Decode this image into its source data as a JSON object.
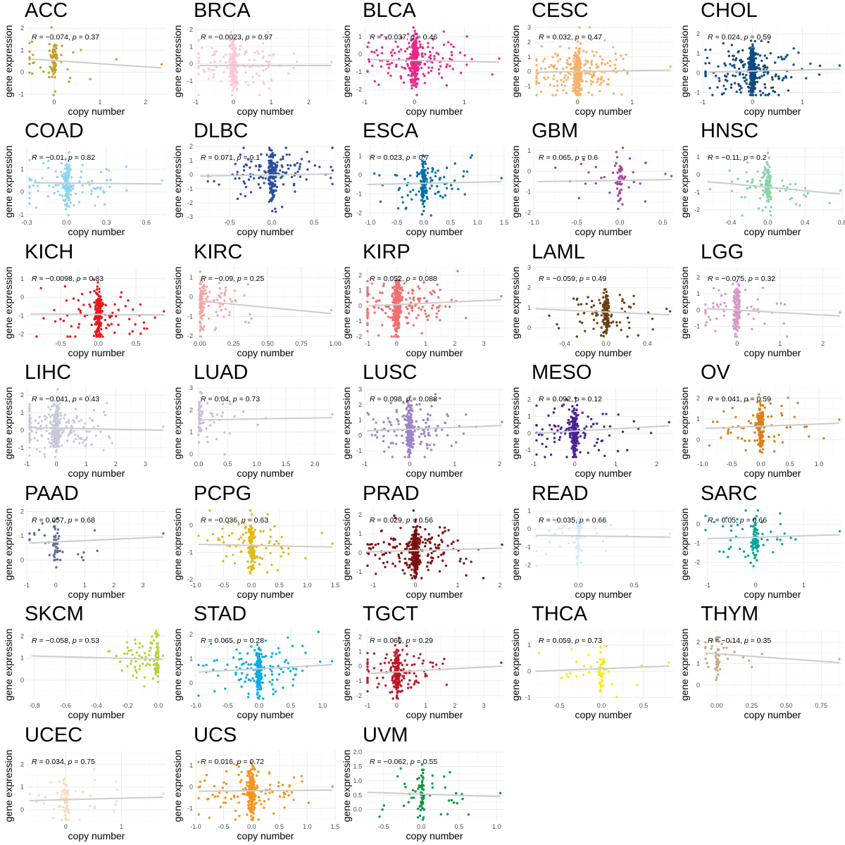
{
  "chart_data": {
    "type": "scatter",
    "layout": "facets 5 columns x 7 rows",
    "xlabel": "copy number",
    "ylabel": "gene expression",
    "grid": true,
    "trend_line_color": "#cccccc",
    "panels": [
      {
        "title": "ACC",
        "color": "#c5a12b",
        "R": "−0.074",
        "p": "0.37",
        "n": 90,
        "xlim": [
          -0.6,
          2.45
        ],
        "xticks": [
          "0",
          "1",
          "2"
        ],
        "ylim": [
          -1.1,
          2.1
        ],
        "yticks": [
          "-1",
          "0",
          "1",
          "2"
        ],
        "line": [
          [
            -0.5,
            0.6
          ],
          [
            2.35,
            0.2
          ]
        ]
      },
      {
        "title": "BRCA",
        "color": "#f9c9d5",
        "R": "−0.0023",
        "p": "0.97",
        "n": 280,
        "xlim": [
          -1,
          2.7
        ],
        "xticks": [
          "-1",
          "0",
          "1",
          "2"
        ],
        "ylim": [
          -1.9,
          2.2
        ],
        "yticks": [
          "-1",
          "0",
          "1",
          "2"
        ],
        "line": [
          [
            -0.9,
            -0.1
          ],
          [
            2.6,
            -0.1
          ]
        ]
      },
      {
        "title": "BLCA",
        "color": "#e7298a",
        "R": "−0.037",
        "p": "0.46",
        "n": 380,
        "xlim": [
          -1,
          1.8
        ],
        "xticks": [
          "-1",
          "0",
          "1"
        ],
        "ylim": [
          -2.4,
          1.6
        ],
        "yticks": [
          "-2",
          "-1",
          "0",
          "1"
        ],
        "line": [
          [
            -0.9,
            -0.3
          ],
          [
            1.7,
            -0.45
          ]
        ]
      },
      {
        "title": "CESC",
        "color": "#f6b26b",
        "R": "0.032",
        "p": "0.47",
        "n": 420,
        "xlim": [
          -0.8,
          1.75
        ],
        "xticks": [
          "0",
          "1"
        ],
        "ylim": [
          -1.7,
          3.1
        ],
        "yticks": [
          "-1",
          "0",
          "1",
          "2",
          "3"
        ],
        "line": [
          [
            -0.75,
            -0.05
          ],
          [
            1.7,
            0.1
          ]
        ]
      },
      {
        "title": "CHOL",
        "color": "#0f4c81",
        "R": "0.024",
        "p": "0.59",
        "n": 420,
        "xlim": [
          -1,
          1.8
        ],
        "xticks": [
          "-1",
          "0",
          "1"
        ],
        "ylim": [
          -1.2,
          2.4
        ],
        "yticks": [
          "-1",
          "0",
          "1",
          "2"
        ],
        "line": [
          [
            -0.9,
            0.05
          ],
          [
            1.75,
            0.2
          ]
        ]
      },
      {
        "title": "COAD",
        "color": "#8fd3f4",
        "R": "−0.01",
        "p": "0.82",
        "n": 200,
        "xlim": [
          -0.3,
          0.75
        ],
        "xticks": [
          "-0.3",
          "0.0",
          "0.3",
          "0.6"
        ],
        "ylim": [
          -1.1,
          2
        ],
        "yticks": [
          "-1",
          "0",
          "1"
        ],
        "line": [
          [
            -0.25,
            0.4
          ],
          [
            0.72,
            0.35
          ]
        ]
      },
      {
        "title": "DLBC",
        "color": "#2c4f9e",
        "R": "0.071",
        "p": "0.1",
        "n": 260,
        "xlim": [
          -0.9,
          0.75
        ],
        "xticks": [
          "-0.5",
          "0.0",
          "0.5"
        ],
        "ylim": [
          -3,
          2
        ],
        "yticks": [
          "-3",
          "-2",
          "-1",
          "0",
          "1",
          "2"
        ],
        "line": [
          [
            -0.85,
            -0.1
          ],
          [
            0.72,
            0.05
          ]
        ]
      },
      {
        "title": "ESCA",
        "color": "#0570a8",
        "R": "0.023",
        "p": "0.7",
        "n": 180,
        "xlim": [
          -1.1,
          1.5
        ],
        "xticks": [
          "-1.0",
          "-0.5",
          "0.0",
          "0.5",
          "1.0",
          "1.5"
        ],
        "ylim": [
          -2.2,
          1.5
        ],
        "yticks": [
          "-2",
          "-1",
          "0",
          "1"
        ],
        "line": [
          [
            -1.05,
            -0.5
          ],
          [
            1.45,
            -0.35
          ]
        ]
      },
      {
        "title": "GBM",
        "color": "#a9449a",
        "R": "0.065",
        "p": "0.6",
        "n": 70,
        "xlim": [
          -1,
          0.62
        ],
        "xticks": [
          "-1.0",
          "-0.5",
          "0.0",
          "0.5"
        ],
        "ylim": [
          -2.2,
          1.2
        ],
        "yticks": [
          "-2",
          "-1",
          "0",
          "1"
        ],
        "line": [
          [
            -0.95,
            -0.5
          ],
          [
            0.6,
            -0.4
          ]
        ]
      },
      {
        "title": "HNSC",
        "color": "#88d4a8",
        "R": "−0.11",
        "p": "0.2",
        "n": 140,
        "xlim": [
          -0.7,
          0.8
        ],
        "xticks": [
          "-0.4",
          "0.0",
          "0.4",
          "0.8"
        ],
        "ylim": [
          -2.4,
          1.6
        ],
        "yticks": [
          "-2",
          "-1",
          "0",
          "1"
        ],
        "line": [
          [
            -0.65,
            -0.4
          ],
          [
            0.78,
            -1.1
          ]
        ]
      },
      {
        "title": "KICH",
        "color": "#e31a1c",
        "R": "−0.0098",
        "p": "0.83",
        "n": 220,
        "xlim": [
          -0.95,
          0.9
        ],
        "xticks": [
          "-0.5",
          "0.0",
          "0.5"
        ],
        "ylim": [
          -2.2,
          1.6
        ],
        "yticks": [
          "-2",
          "-1",
          "0",
          "1"
        ],
        "line": [
          [
            -0.9,
            -0.9
          ],
          [
            0.87,
            -0.95
          ]
        ]
      },
      {
        "title": "KIRC",
        "color": "#f4a6a6",
        "R": "−0.09",
        "p": "0.25",
        "n": 160,
        "xlim": [
          -0.03,
          1.0
        ],
        "xticks": [
          "0.00",
          "0.25",
          "0.50",
          "0.75",
          "1.00"
        ],
        "ylim": [
          -2.1,
          1.5
        ],
        "yticks": [
          "-2",
          "-1",
          "0",
          "1"
        ],
        "line": [
          [
            -0.01,
            -0.2
          ],
          [
            0.97,
            -0.85
          ]
        ]
      },
      {
        "title": "KIRP",
        "color": "#f07070",
        "R": "0.052",
        "p": "0.088",
        "n": 450,
        "xlim": [
          -1.1,
          3.7
        ],
        "xticks": [
          "-1",
          "0",
          "1",
          "2",
          "3"
        ],
        "ylim": [
          -2.1,
          2.5
        ],
        "yticks": [
          "-2",
          "-1",
          "0",
          "1",
          "2"
        ],
        "line": [
          [
            -0.95,
            0.0
          ],
          [
            3.6,
            0.4
          ]
        ]
      },
      {
        "title": "LAML",
        "color": "#6b3e12",
        "R": "−0.059",
        "p": "0.49",
        "n": 170,
        "xlim": [
          -0.7,
          0.65
        ],
        "xticks": [
          "-0.4",
          "0.0",
          "0.4"
        ],
        "ylim": [
          -0.5,
          3
        ],
        "yticks": [
          "0",
          "1",
          "2",
          "3"
        ],
        "line": [
          [
            -0.68,
            0.95
          ],
          [
            0.62,
            0.65
          ]
        ]
      },
      {
        "title": "LGG",
        "color": "#d39ac6",
        "R": "−0.075",
        "p": "0.32",
        "n": 170,
        "xlim": [
          -0.8,
          2.45
        ],
        "xticks": [
          "0",
          "1",
          "2"
        ],
        "ylim": [
          -1.7,
          2.6
        ],
        "yticks": [
          "-1",
          "0",
          "1",
          "2"
        ],
        "line": [
          [
            -0.7,
            0.1
          ],
          [
            2.4,
            -0.35
          ]
        ]
      },
      {
        "title": "LIHC",
        "color": "#c8c8dc",
        "R": "−0.041",
        "p": "0.43",
        "n": 360,
        "xlim": [
          -1,
          3.7
        ],
        "xticks": [
          "-1",
          "0",
          "1",
          "2",
          "3"
        ],
        "ylim": [
          -1.6,
          2.4
        ],
        "yticks": [
          "-1",
          "0",
          "1",
          "2"
        ],
        "line": [
          [
            -0.9,
            0.15
          ],
          [
            3.6,
            0.0
          ]
        ]
      },
      {
        "title": "LUAD",
        "color": "#cdb9e0",
        "R": "0.04",
        "p": "0.73",
        "n": 70,
        "xlim": [
          -0.05,
          2.35
        ],
        "xticks": [
          "0.0",
          "0.5",
          "1.0",
          "1.5",
          "2.0"
        ],
        "ylim": [
          -0.2,
          3
        ],
        "yticks": [
          "0",
          "1",
          "2",
          "3"
        ],
        "line": [
          [
            0.0,
            1.55
          ],
          [
            2.3,
            1.65
          ]
        ]
      },
      {
        "title": "LUSC",
        "color": "#9e86c4",
        "R": "0.098",
        "p": "0.088",
        "n": 300,
        "xlim": [
          -1,
          2.1
        ],
        "xticks": [
          "-1",
          "0",
          "1",
          "2"
        ],
        "ylim": [
          -1.5,
          3.1
        ],
        "yticks": [
          "-1",
          "0",
          "1",
          "2",
          "3"
        ],
        "line": [
          [
            -0.95,
            0.3
          ],
          [
            2.05,
            0.65
          ]
        ]
      },
      {
        "title": "MESO",
        "color": "#4b2391",
        "R": "0.092",
        "p": "0.12",
        "n": 260,
        "xlim": [
          -1,
          2.4
        ],
        "xticks": [
          "-1",
          "0",
          "1",
          "2"
        ],
        "ylim": [
          -1.5,
          2.7
        ],
        "yticks": [
          "-1",
          "0",
          "1",
          "2"
        ],
        "line": [
          [
            -0.95,
            0.0
          ],
          [
            2.3,
            0.45
          ]
        ]
      },
      {
        "title": "OV",
        "color": "#d9801c",
        "R": "0.041",
        "p": "0.59",
        "n": 170,
        "xlim": [
          -1,
          1.4
        ],
        "xticks": [
          "-1.0",
          "-0.5",
          "0.0",
          "0.5",
          "1.0"
        ],
        "ylim": [
          -0.9,
          2.5
        ],
        "yticks": [
          "0",
          "1",
          "2"
        ],
        "line": [
          [
            -0.95,
            0.55
          ],
          [
            1.35,
            0.8
          ]
        ]
      },
      {
        "title": "PAAD",
        "color": "#5e6e9e",
        "R": "0.057",
        "p": "0.68",
        "n": 60,
        "xlim": [
          -1,
          3.8
        ],
        "xticks": [
          "-1",
          "0",
          "1",
          "2",
          "3"
        ],
        "ylim": [
          -0.8,
          2.1
        ],
        "yticks": [
          "0",
          "1",
          "2"
        ],
        "line": [
          [
            -0.9,
            0.7
          ],
          [
            3.7,
            0.95
          ]
        ]
      },
      {
        "title": "PCPG",
        "color": "#e2b81a",
        "R": "−0.036",
        "p": "0.63",
        "n": 180,
        "xlim": [
          -1,
          1.5
        ],
        "xticks": [
          "-1.0",
          "-0.5",
          "0.0",
          "0.5",
          "1.0",
          "1.5"
        ],
        "ylim": [
          -2,
          0.6
        ],
        "yticks": [
          "-2",
          "-1",
          "0"
        ],
        "line": [
          [
            -0.95,
            -0.7
          ],
          [
            1.45,
            -0.8
          ]
        ]
      },
      {
        "title": "PRAD",
        "color": "#7b1113",
        "R": "0.029",
        "p": "0.56",
        "n": 420,
        "xlim": [
          -1.2,
          2.1
        ],
        "xticks": [
          "-1",
          "0",
          "1",
          "2"
        ],
        "ylim": [
          -1.4,
          2.3
        ],
        "yticks": [
          "-1",
          "0",
          "1",
          "2"
        ],
        "line": [
          [
            -1.15,
            0.05
          ],
          [
            2.05,
            0.25
          ]
        ]
      },
      {
        "title": "READ",
        "color": "#d4ecf9",
        "R": "−0.035",
        "p": "0.66",
        "n": 90,
        "xlim": [
          -0.4,
          0.85
        ],
        "xticks": [
          "0.0",
          "0.5"
        ],
        "ylim": [
          -2.8,
          1.1
        ],
        "yticks": [
          "-2",
          "-1",
          "0",
          "1"
        ],
        "line": [
          [
            -0.38,
            -0.35
          ],
          [
            0.82,
            -0.45
          ]
        ]
      },
      {
        "title": "SARC",
        "color": "#0aa59a",
        "R": "0.05",
        "p": "0.66",
        "n": 110,
        "xlim": [
          -1.1,
          1.8
        ],
        "xticks": [
          "-1",
          "0",
          "1"
        ],
        "ylim": [
          -2.9,
          0.8
        ],
        "yticks": [
          "-2",
          "-1",
          "0"
        ],
        "line": [
          [
            -1.0,
            -0.75
          ],
          [
            1.75,
            -0.55
          ]
        ]
      },
      {
        "title": "SKCM",
        "color": "#b5d334",
        "R": "−0.058",
        "p": "0.53",
        "n": 110,
        "xlim": [
          -0.85,
          0.05
        ],
        "xticks": [
          "-0.8",
          "-0.6",
          "-0.4",
          "-0.2",
          "0.0"
        ],
        "ylim": [
          -0.9,
          2.3
        ],
        "yticks": [
          "0",
          "1",
          "2"
        ],
        "line": [
          [
            -0.82,
            1.1
          ],
          [
            0.03,
            0.95
          ]
        ]
      },
      {
        "title": "STAD",
        "color": "#0aabe6",
        "R": "0.065",
        "p": "0.28",
        "n": 260,
        "xlim": [
          -1,
          1.2
        ],
        "xticks": [
          "-1.0",
          "-0.5",
          "0.0",
          "0.5",
          "1.0"
        ],
        "ylim": [
          -0.7,
          2.2
        ],
        "yticks": [
          "0",
          "1",
          "2"
        ],
        "line": [
          [
            -0.95,
            0.45
          ],
          [
            1.15,
            0.75
          ]
        ]
      },
      {
        "title": "TGCT",
        "color": "#c0172c",
        "R": "0.066",
        "p": "0.29",
        "n": 260,
        "xlim": [
          -1.1,
          3.7
        ],
        "xticks": [
          "-1",
          "0",
          "1",
          "2",
          "3"
        ],
        "ylim": [
          -2.3,
          2.5
        ],
        "yticks": [
          "-2",
          "-1",
          "0",
          "1",
          "2"
        ],
        "line": [
          [
            -1.0,
            -0.5
          ],
          [
            3.6,
            0.0
          ]
        ]
      },
      {
        "title": "THCA",
        "color": "#f5ea14",
        "R": "0.059",
        "p": "0.73",
        "n": 60,
        "xlim": [
          -0.8,
          0.85
        ],
        "xticks": [
          "-0.5",
          "0.0",
          "0.5"
        ],
        "ylim": [
          -1.1,
          1.6
        ],
        "yticks": [
          "-1",
          "0",
          "1"
        ],
        "line": [
          [
            -0.78,
            0.0
          ],
          [
            0.8,
            0.2
          ]
        ]
      },
      {
        "title": "THYM",
        "color": "#c9a886",
        "R": "−0.14",
        "p": "0.35",
        "n": 60,
        "xlim": [
          -0.1,
          0.9
        ],
        "xticks": [
          "0.00",
          "0.25",
          "0.50",
          "0.75"
        ],
        "ylim": [
          -0.7,
          2.6
        ],
        "yticks": [
          "0",
          "1",
          "2"
        ],
        "line": [
          [
            -0.08,
            1.5
          ],
          [
            0.88,
            1.05
          ]
        ]
      },
      {
        "title": "UCEC",
        "color": "#f9dcbe",
        "R": "0.034",
        "p": "0.75",
        "n": 90,
        "xlim": [
          -0.7,
          1.8
        ],
        "xticks": [
          "0",
          "1"
        ],
        "ylim": [
          -0.5,
          2.6
        ],
        "yticks": [
          "0",
          "1",
          "2"
        ],
        "line": [
          [
            -0.65,
            0.4
          ],
          [
            1.75,
            0.55
          ]
        ]
      },
      {
        "title": "UCS",
        "color": "#f7941d",
        "R": "0.016",
        "p": "0.72",
        "n": 300,
        "xlim": [
          -1,
          1.5
        ],
        "xticks": [
          "-1.0",
          "-0.5",
          "0.0",
          "0.5",
          "1.0",
          "1.5"
        ],
        "ylim": [
          -1.6,
          1.7
        ],
        "yticks": [
          "-1",
          "0",
          "1"
        ],
        "line": [
          [
            -0.95,
            -0.2
          ],
          [
            1.45,
            -0.15
          ]
        ]
      },
      {
        "title": "UVM",
        "color": "#009a3e",
        "R": "−0.062",
        "p": "0.55",
        "n": 90,
        "xlim": [
          -0.75,
          1.1
        ],
        "xticks": [
          "-0.5",
          "0.0",
          "0.5",
          "1.0"
        ],
        "ylim": [
          -0.4,
          2.05
        ],
        "yticks": [
          "0.0",
          "0.5",
          "1.0",
          "1.5",
          "2.0"
        ],
        "line": [
          [
            -0.72,
            0.6
          ],
          [
            1.05,
            0.45
          ]
        ]
      }
    ]
  }
}
